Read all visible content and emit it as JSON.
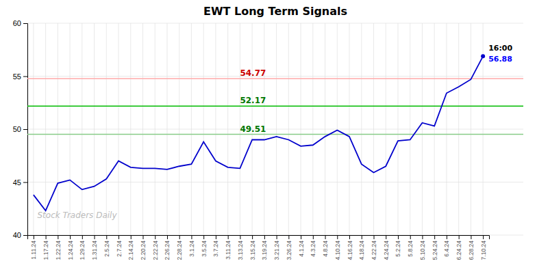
{
  "chart_data": {
    "type": "line",
    "title": "EWT Long Term Signals",
    "watermark": "Stock Traders Daily",
    "categories": [
      "1.11.24",
      "1.17.24",
      "1.22.24",
      "1.24.24",
      "1.29.24",
      "1.31.24",
      "2.5.24",
      "2.7.24",
      "2.14.24",
      "2.20.24",
      "2.22.24",
      "2.26.24",
      "2.28.24",
      "3.1.24",
      "3.5.24",
      "3.7.24",
      "3.11.24",
      "3.13.24",
      "3.15.24",
      "3.19.24",
      "3.21.24",
      "3.26.24",
      "4.1.24",
      "4.3.24",
      "4.8.24",
      "4.10.24",
      "4.16.24",
      "4.18.24",
      "4.22.24",
      "4.24.24",
      "5.2.24",
      "5.8.24",
      "5.10.24",
      "5.24.24",
      "6.4.24",
      "6.24.24",
      "6.28.24",
      "7.10.24"
    ],
    "values": [
      43.8,
      42.3,
      44.9,
      45.2,
      44.3,
      44.6,
      45.3,
      47.0,
      46.4,
      46.3,
      46.3,
      46.2,
      46.5,
      46.7,
      48.8,
      47.0,
      46.4,
      46.3,
      49.0,
      49.0,
      49.3,
      49.0,
      48.4,
      48.5,
      49.3,
      49.9,
      49.3,
      46.7,
      45.9,
      46.5,
      48.9,
      49.0,
      50.6,
      50.3,
      53.4,
      54.0,
      54.7,
      56.88
    ],
    "color": "#0000cc",
    "reference_lines": [
      {
        "value": 54.77,
        "label": "54.77",
        "color": "#ffaaaa",
        "label_color": "#cc0000"
      },
      {
        "value": 52.17,
        "label": "52.17",
        "color": "#00bb00",
        "label_color": "#007700"
      },
      {
        "value": 49.51,
        "label": "49.51",
        "color": "#88cc88",
        "label_color": "#007700"
      }
    ],
    "annotations": [
      {
        "text": "16:00"
      },
      {
        "text": "56.88",
        "color": "#0000ff"
      }
    ],
    "ylim": [
      40,
      60
    ],
    "yticks": [
      40,
      45,
      50,
      55,
      60
    ],
    "grid": true
  }
}
